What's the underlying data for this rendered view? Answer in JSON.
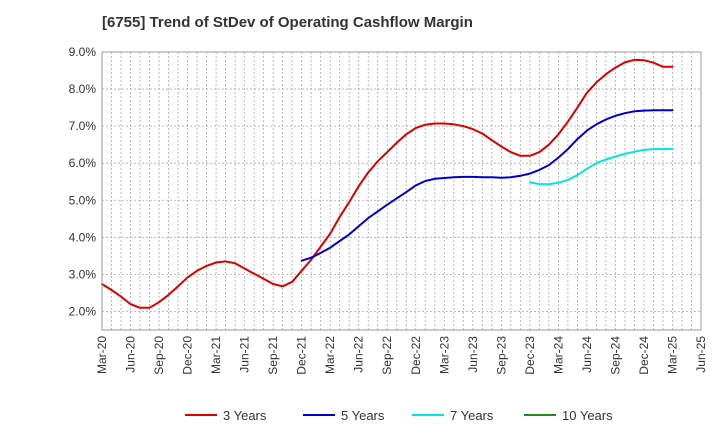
{
  "chart_data": {
    "type": "line",
    "title": "[6755]  Trend of StDev of Operating Cashflow Margin",
    "xlabel": "",
    "ylabel": "",
    "x_ticks": [
      "Mar-20",
      "Jun-20",
      "Sep-20",
      "Dec-20",
      "Mar-21",
      "Jun-21",
      "Sep-21",
      "Dec-21",
      "Mar-22",
      "Jun-22",
      "Sep-22",
      "Dec-22",
      "Mar-23",
      "Jun-23",
      "Sep-23",
      "Dec-23",
      "Mar-24",
      "Jun-24",
      "Sep-24",
      "Dec-24",
      "Mar-25",
      "Jun-25"
    ],
    "y_ticks": [
      "2.0%",
      "3.0%",
      "4.0%",
      "5.0%",
      "6.0%",
      "7.0%",
      "8.0%",
      "9.0%"
    ],
    "ylim": [
      1.5,
      9.0
    ],
    "grid": true,
    "legend_position": "bottom",
    "series": [
      {
        "name": "3 Years",
        "color": "#dd0000",
        "x": [
          "2020-03",
          "2020-04",
          "2020-05",
          "2020-06",
          "2020-07",
          "2020-08",
          "2020-09",
          "2020-10",
          "2020-11",
          "2020-12",
          "2021-01",
          "2021-02",
          "2021-03",
          "2021-04",
          "2021-05",
          "2021-06",
          "2021-07",
          "2021-08",
          "2021-09",
          "2021-10",
          "2021-11",
          "2021-12",
          "2022-01",
          "2022-02",
          "2022-03",
          "2022-04",
          "2022-05",
          "2022-06",
          "2022-07",
          "2022-08",
          "2022-09",
          "2022-10",
          "2022-11",
          "2022-12",
          "2023-01",
          "2023-02",
          "2023-03",
          "2023-04",
          "2023-05",
          "2023-06",
          "2023-07",
          "2023-08",
          "2023-09",
          "2023-10",
          "2023-11",
          "2023-12",
          "2024-01",
          "2024-02",
          "2024-03",
          "2024-04",
          "2024-05",
          "2024-06",
          "2024-07",
          "2024-08",
          "2024-09",
          "2024-10",
          "2024-11",
          "2024-12",
          "2025-01",
          "2025-02",
          "2025-03"
        ],
        "values": [
          2.74,
          2.58,
          2.4,
          2.2,
          2.1,
          2.1,
          2.25,
          2.45,
          2.68,
          2.92,
          3.1,
          3.23,
          3.32,
          3.35,
          3.3,
          3.16,
          3.02,
          2.88,
          2.74,
          2.68,
          2.8,
          3.1,
          3.4,
          3.75,
          4.1,
          4.55,
          4.95,
          5.38,
          5.75,
          6.05,
          6.3,
          6.55,
          6.78,
          6.95,
          7.04,
          7.07,
          7.07,
          7.05,
          7.0,
          6.92,
          6.8,
          6.62,
          6.45,
          6.3,
          6.2,
          6.2,
          6.3,
          6.5,
          6.78,
          7.12,
          7.5,
          7.9,
          8.18,
          8.4,
          8.58,
          8.72,
          8.79,
          8.78,
          8.71,
          8.6,
          8.6
        ]
      },
      {
        "name": "5 Years",
        "color": "#0000cc",
        "x": [
          "2021-12",
          "2022-01",
          "2022-02",
          "2022-03",
          "2022-04",
          "2022-05",
          "2022-06",
          "2022-07",
          "2022-08",
          "2022-09",
          "2022-10",
          "2022-11",
          "2022-12",
          "2023-01",
          "2023-02",
          "2023-03",
          "2023-04",
          "2023-05",
          "2023-06",
          "2023-07",
          "2023-08",
          "2023-09",
          "2023-10",
          "2023-11",
          "2023-12",
          "2024-01",
          "2024-02",
          "2024-03",
          "2024-04",
          "2024-05",
          "2024-06",
          "2024-07",
          "2024-08",
          "2024-09",
          "2024-10",
          "2024-11",
          "2024-12",
          "2025-01",
          "2025-02",
          "2025-03"
        ],
        "values": [
          3.37,
          3.45,
          3.58,
          3.72,
          3.9,
          4.08,
          4.3,
          4.52,
          4.7,
          4.88,
          5.05,
          5.22,
          5.4,
          5.52,
          5.58,
          5.6,
          5.62,
          5.63,
          5.63,
          5.62,
          5.62,
          5.61,
          5.62,
          5.66,
          5.72,
          5.82,
          5.95,
          6.15,
          6.38,
          6.65,
          6.88,
          7.05,
          7.18,
          7.28,
          7.35,
          7.4,
          7.42,
          7.43,
          7.43,
          7.43
        ]
      },
      {
        "name": "7 Years",
        "color": "#00e5e5",
        "x": [
          "2023-12",
          "2024-01",
          "2024-02",
          "2024-03",
          "2024-04",
          "2024-05",
          "2024-06",
          "2024-07",
          "2024-08",
          "2024-09",
          "2024-10",
          "2024-11",
          "2024-12",
          "2025-01",
          "2025-02",
          "2025-03"
        ],
        "values": [
          5.48,
          5.44,
          5.43,
          5.47,
          5.55,
          5.68,
          5.85,
          6.0,
          6.1,
          6.18,
          6.25,
          6.31,
          6.36,
          6.38,
          6.38,
          6.39
        ]
      },
      {
        "name": "10 Years",
        "color": "#228b22",
        "x": [],
        "values": []
      }
    ]
  }
}
